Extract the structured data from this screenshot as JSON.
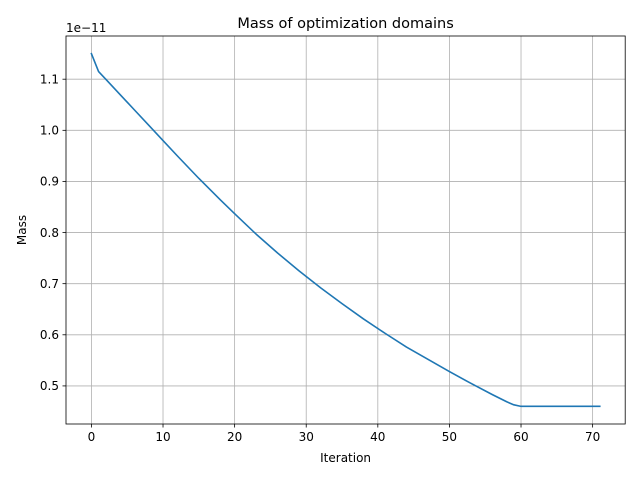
{
  "chart_data": {
    "type": "line",
    "title": "Mass of optimization domains",
    "xlabel": "Iteration",
    "ylabel": "Mass",
    "y_offset_label": "1e−11",
    "xlim": [
      -3.55,
      74.55
    ],
    "ylim": [
      0.4255,
      1.1845
    ],
    "x_ticks": [
      0,
      10,
      20,
      30,
      40,
      50,
      60,
      70
    ],
    "x_tick_labels": [
      "0",
      "10",
      "20",
      "30",
      "40",
      "50",
      "60",
      "70"
    ],
    "y_ticks": [
      0.5,
      0.6,
      0.7,
      0.8,
      0.9,
      1.0,
      1.1
    ],
    "y_tick_labels": [
      "0.5",
      "0.6",
      "0.7",
      "0.8",
      "0.9",
      "1.0",
      "1.1"
    ],
    "grid": true,
    "line_color": "#1f77b4",
    "series": [
      {
        "x": [
          0,
          1,
          2,
          4,
          6,
          8,
          10,
          12,
          15,
          18,
          20,
          23,
          26,
          29,
          32,
          35,
          38,
          41,
          44,
          47,
          50,
          53,
          56,
          58,
          59,
          60,
          62,
          65,
          68,
          71
        ],
        "values": [
          1.15,
          1.115,
          1.1,
          1.07,
          1.04,
          1.01,
          0.98,
          0.95,
          0.906,
          0.864,
          0.837,
          0.797,
          0.76,
          0.725,
          0.692,
          0.661,
          0.631,
          0.603,
          0.576,
          0.552,
          0.528,
          0.505,
          0.483,
          0.469,
          0.463,
          0.46,
          0.46,
          0.46,
          0.46,
          0.46
        ]
      }
    ]
  }
}
